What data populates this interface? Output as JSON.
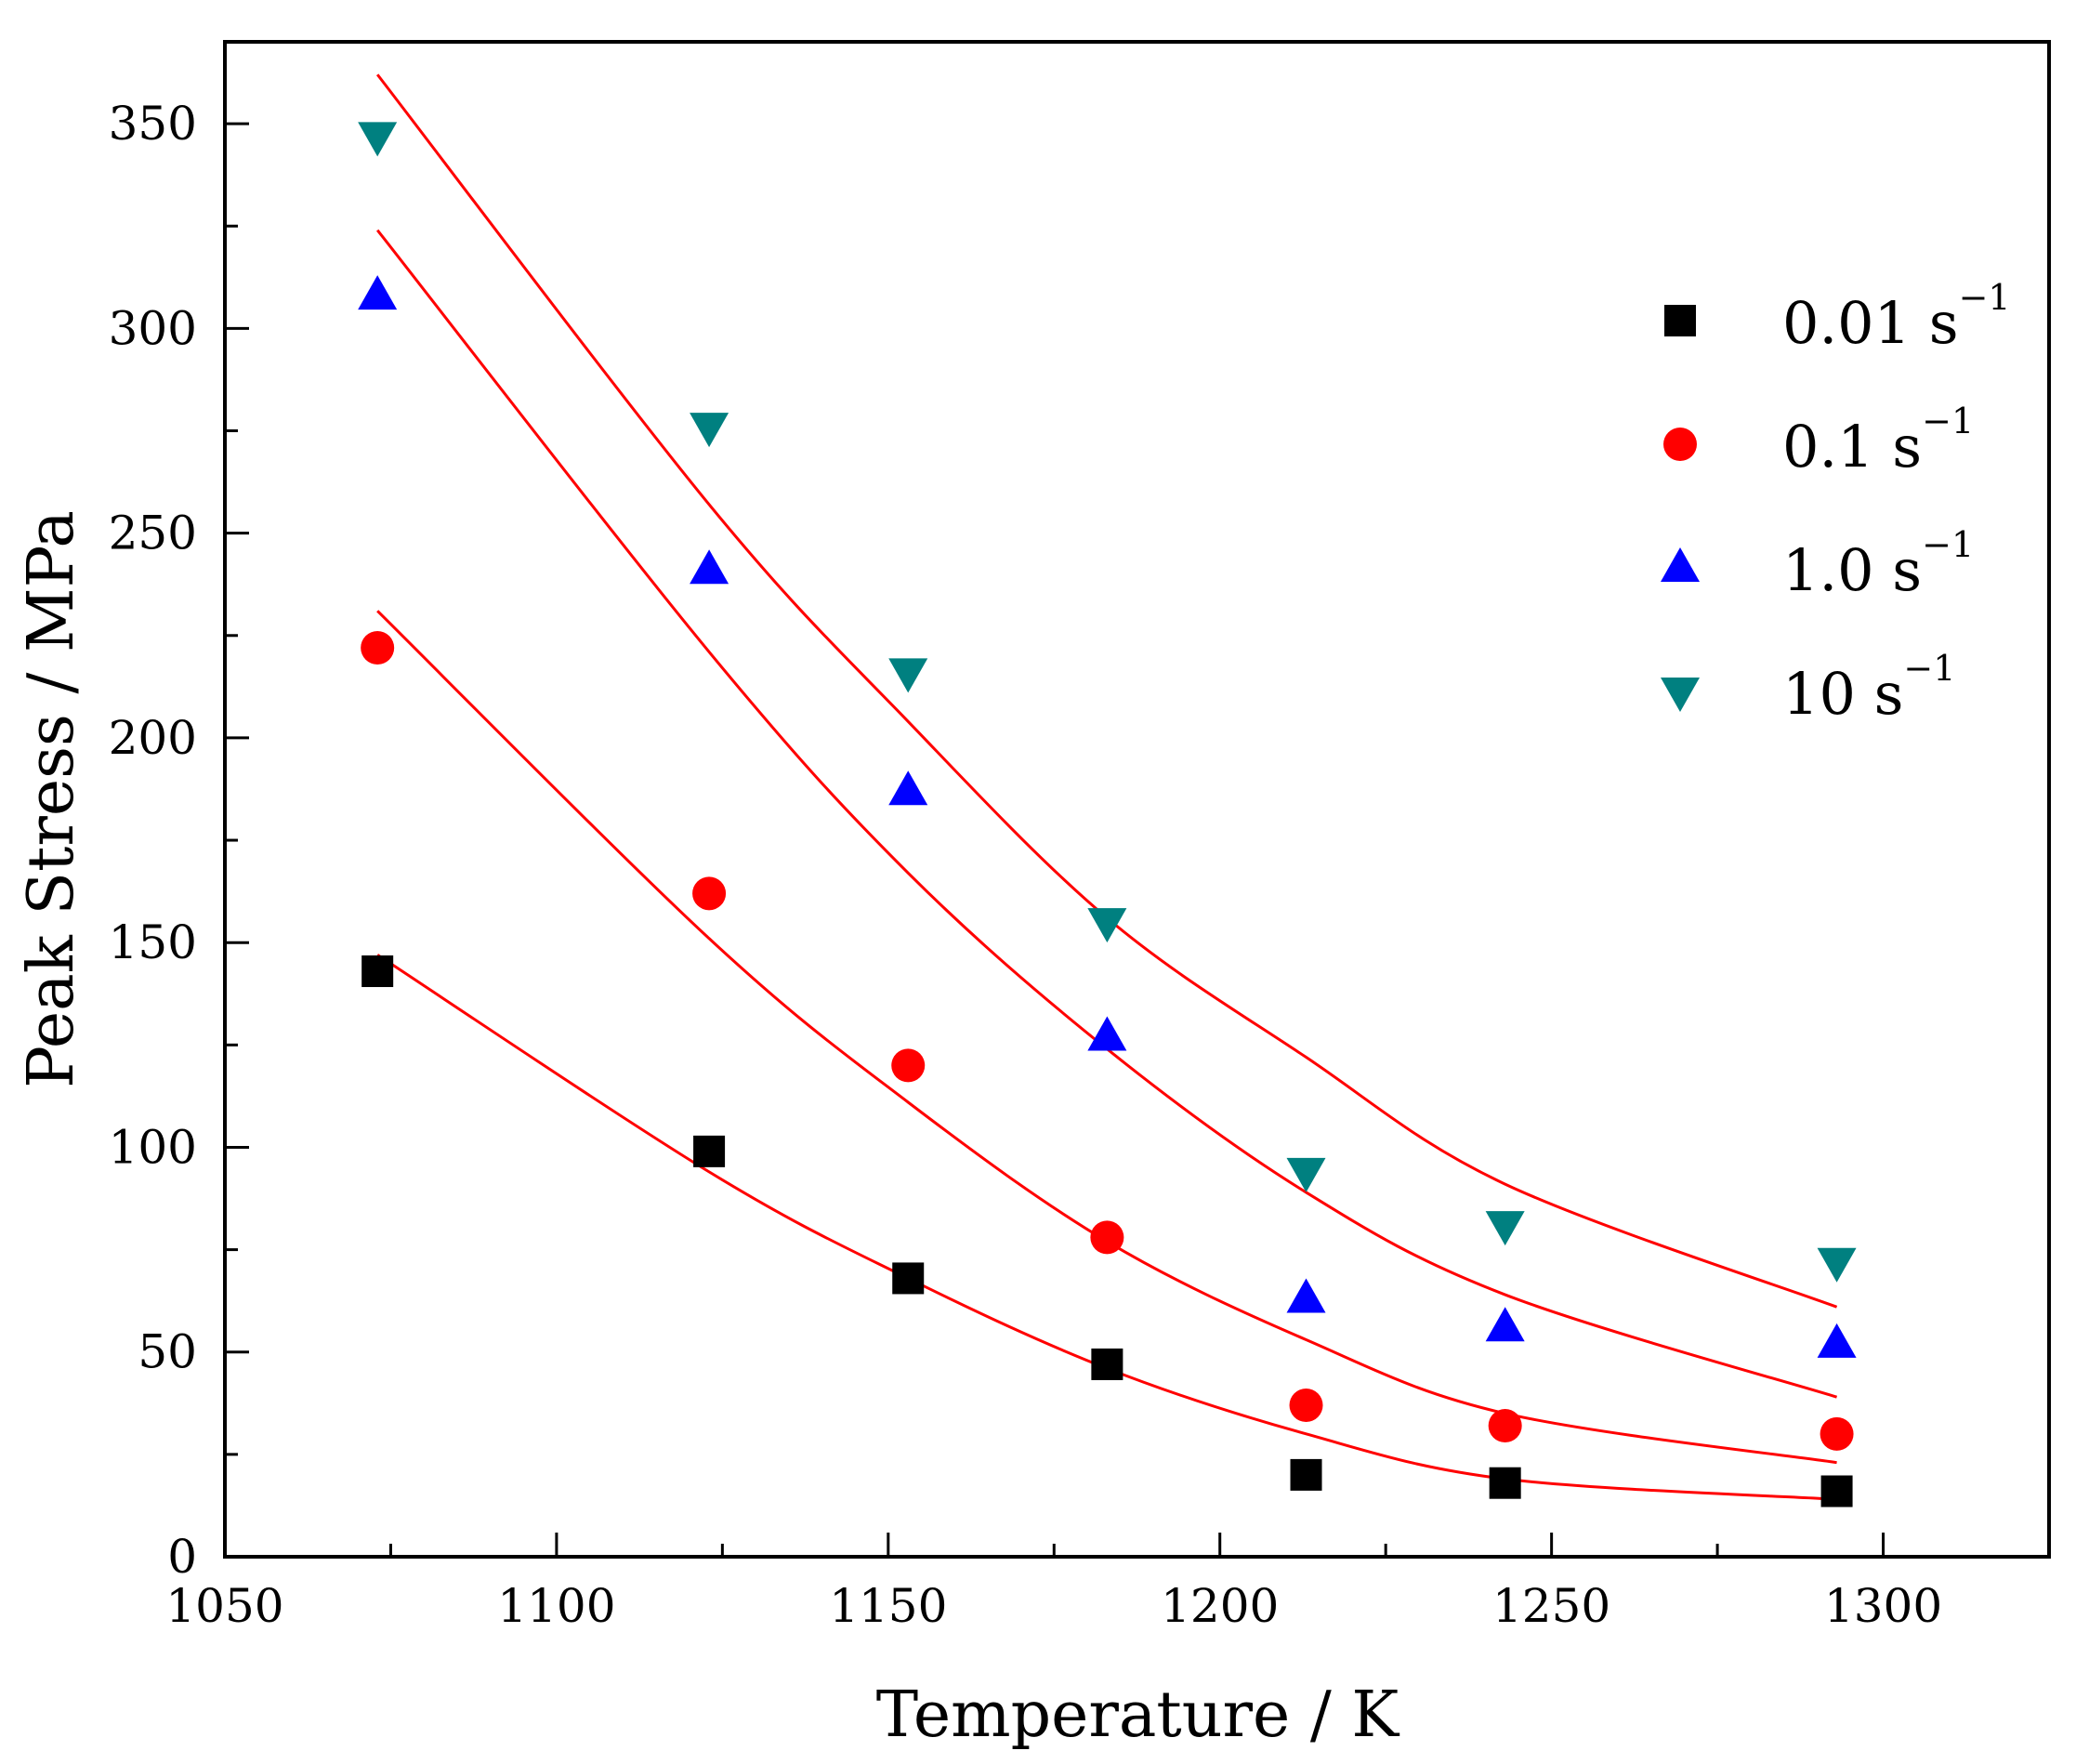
{
  "chart_data": {
    "type": "scatter",
    "title": "",
    "xlabel": "Temperature / K",
    "ylabel": "Peak Stress / MPa",
    "xlim": [
      1050,
      1325
    ],
    "ylim": [
      0,
      370
    ],
    "x_ticks": [
      1050,
      1100,
      1150,
      1200,
      1250,
      1300
    ],
    "y_ticks": [
      0,
      50,
      100,
      150,
      200,
      250,
      300,
      350
    ],
    "x_tick_labels": [
      "1050",
      "1100",
      "1150",
      "1200",
      "1250",
      "1300"
    ],
    "y_tick_labels": [
      "0",
      "50",
      "100",
      "150",
      "200",
      "250",
      "300",
      "350"
    ],
    "grid": false,
    "legend_position": "top-right",
    "fit_line_color": "#ff0000",
    "x": [
      1073,
      1123,
      1153,
      1183,
      1213,
      1243,
      1293
    ],
    "series": [
      {
        "name": "0.01 s",
        "name_sup": "−1",
        "marker": "square",
        "color": "#000000",
        "values": [
          143,
          99,
          68,
          47,
          20,
          18,
          16
        ],
        "fit": [
          [
            1073,
            147
          ],
          [
            1123,
            94
          ],
          [
            1153,
            68
          ],
          [
            1183,
            46
          ],
          [
            1213,
            30
          ],
          [
            1243,
            19
          ],
          [
            1293,
            14
          ]
        ]
      },
      {
        "name": "0.1 s",
        "name_sup": "−1",
        "marker": "circle",
        "color": "#ff0000",
        "values": [
          222,
          162,
          120,
          78,
          37,
          32,
          30
        ],
        "fit": [
          [
            1073,
            231
          ],
          [
            1123,
            151
          ],
          [
            1153,
            111
          ],
          [
            1183,
            77
          ],
          [
            1213,
            53
          ],
          [
            1243,
            35
          ],
          [
            1293,
            23
          ]
        ]
      },
      {
        "name": "1.0 s",
        "name_sup": "−1",
        "marker": "triangle-up",
        "color": "#0000ff",
        "values": [
          308,
          241,
          187,
          127,
          63,
          56,
          52
        ],
        "fit": [
          [
            1073,
            324
          ],
          [
            1123,
            221
          ],
          [
            1153,
            167
          ],
          [
            1183,
            124
          ],
          [
            1213,
            89
          ],
          [
            1243,
            64
          ],
          [
            1293,
            39
          ]
        ]
      },
      {
        "name": "10 s",
        "name_sup": "−1",
        "marker": "triangle-down",
        "color": "#008080",
        "values": [
          347,
          276,
          216,
          155,
          94,
          81,
          72
        ],
        "fit": [
          [
            1073,
            362
          ],
          [
            1123,
            257
          ],
          [
            1153,
            204
          ],
          [
            1183,
            156
          ],
          [
            1213,
            122
          ],
          [
            1243,
            91
          ],
          [
            1293,
            61
          ]
        ]
      }
    ]
  }
}
